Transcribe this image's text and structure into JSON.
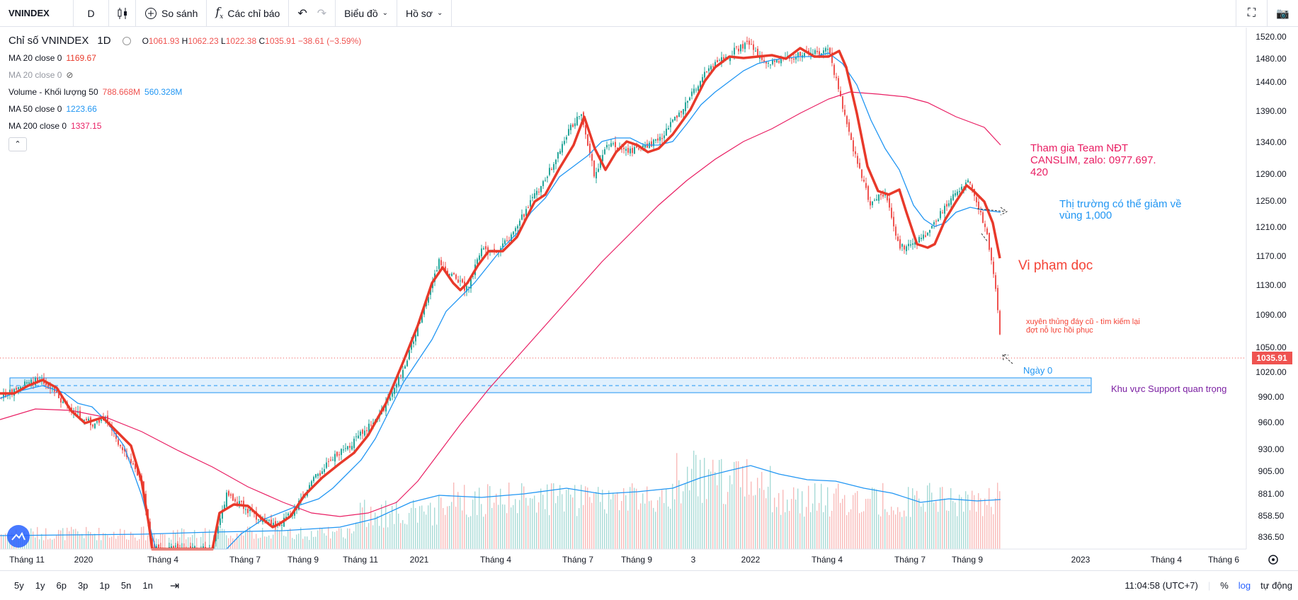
{
  "toolbar": {
    "symbol": "VNINDEX",
    "interval": "D",
    "compare": "So sánh",
    "indicators": "Các chỉ báo",
    "chart_menu": "Biểu đồ",
    "profile_menu": "Hồ sơ"
  },
  "legend": {
    "title": "Chỉ số VNINDEX",
    "timeframe": "1D",
    "ohlc": {
      "o_label": "O",
      "o": "1061.93",
      "h_label": "H",
      "h": "1062.23",
      "l_label": "L",
      "l": "1022.38",
      "c_label": "C",
      "c": "1035.91",
      "change": "−38.61 (−3.59%)"
    },
    "ma20_label": "MA 20 close 0",
    "ma20_value": "1169.67",
    "ma20_hidden_label": "MA 20 close 0",
    "volume_label": "Volume - Khối lượng 50",
    "volume_v1": "788.668M",
    "volume_v2": "560.328M",
    "ma50_label": "MA 50 close 0",
    "ma50_value": "1223.66",
    "ma200_label": "MA 200 close 0",
    "ma200_value": "1337.15"
  },
  "annotations": {
    "team": "Tham gia Team NĐT CANSLIM, zalo: 0977.697. 420",
    "market_down_line1": "Thị trường có thể giảm về",
    "market_down_line2": "vùng 1,000",
    "violation": "Vi phạm dọc",
    "break_line1": "xuyên thủng đáy cũ - tìm kiếm lại",
    "break_line2": "đợt nỗ lực hồi phục",
    "day0": "Ngày 0",
    "support": "Khu vực Support quan trọng"
  },
  "price_axis": [
    "1520.00",
    "1480.00",
    "1440.00",
    "1390.00",
    "1340.00",
    "1290.00",
    "1250.00",
    "1210.00",
    "1170.00",
    "1130.00",
    "1090.00",
    "1050.00",
    "1020.00",
    "990.00",
    "960.00",
    "930.00",
    "905.00",
    "881.00",
    "858.50",
    "836.50"
  ],
  "current_price": "1035.91",
  "time_axis": [
    "Tháng 11",
    "2020",
    "Tháng 4",
    "Tháng 7",
    "Tháng 9",
    "Tháng 11",
    "2021",
    "Tháng 4",
    "Tháng 7",
    "Tháng 9",
    "3",
    "2022",
    "Tháng 4",
    "Tháng 7",
    "Tháng 9",
    "2023",
    "Tháng 4",
    "Tháng 6"
  ],
  "bottom": {
    "ranges": [
      "5y",
      "1y",
      "6p",
      "3p",
      "1p",
      "5n",
      "1n"
    ],
    "time": "11:04:58 (UTC+7)",
    "percent": "%",
    "log": "log",
    "auto": "tự động"
  },
  "colors": {
    "up": "#26a69a",
    "down": "#ef5350",
    "ma20": "#e8392a",
    "ma50": "#2196f3",
    "ma200": "#e91e63",
    "accent": "#2962ff",
    "support_fill": "#bbdefb"
  }
}
